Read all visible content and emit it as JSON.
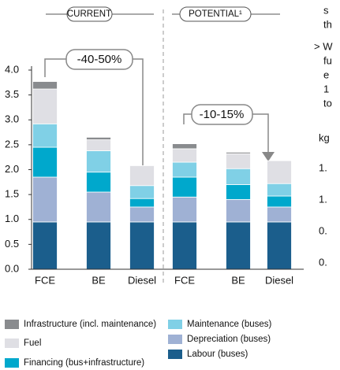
{
  "chart_data": {
    "type": "stacked_bar",
    "group_labels": [
      "CURRENT",
      "POTENTIAL¹"
    ],
    "annotations": [
      "-40-50%",
      "-10-15%"
    ],
    "categories": [
      "FCE",
      "BE",
      "Diesel",
      "FCE",
      "BE",
      "Diesel"
    ],
    "series": [
      {
        "name": "Labour (buses)",
        "color": "#1b5e8c",
        "values": [
          0.95,
          0.95,
          0.95,
          0.95,
          0.95,
          0.95
        ]
      },
      {
        "name": "Depreciation (buses)",
        "color": "#9fb1d4",
        "values": [
          0.9,
          0.6,
          0.3,
          0.5,
          0.45,
          0.3
        ]
      },
      {
        "name": "Financing (bus+infrastructure)",
        "color": "#00a8cc",
        "values": [
          0.6,
          0.4,
          0.17,
          0.4,
          0.3,
          0.22
        ]
      },
      {
        "name": "Maintenance (buses)",
        "color": "#80d0e6",
        "values": [
          0.47,
          0.43,
          0.26,
          0.3,
          0.32,
          0.25
        ]
      },
      {
        "name": "Fuel",
        "color": "#dfdfe4",
        "values": [
          0.7,
          0.22,
          0.4,
          0.27,
          0.3,
          0.46
        ]
      },
      {
        "name": "Infrastructure (incl. maintenance)",
        "color": "#898b8e",
        "values": [
          0.15,
          0.05,
          0,
          0.1,
          0.03,
          0
        ]
      }
    ],
    "ylim": [
      0,
      4
    ],
    "yticks": [
      {
        "value": 0,
        "label": "0.0"
      },
      0.5,
      {
        "value": 1,
        "label": "1.0"
      },
      1.5,
      {
        "value": 2,
        "label": "2.0"
      },
      2.5,
      {
        "value": 3,
        "label": "3.0"
      },
      3.5,
      {
        "value": 4,
        "label": "4.0"
      }
    ],
    "side_text": [
      "s",
      "th",
      "> W",
      "fu",
      "e",
      "1",
      "to",
      "kg",
      "1.",
      "1.",
      "0.",
      "0."
    ]
  }
}
